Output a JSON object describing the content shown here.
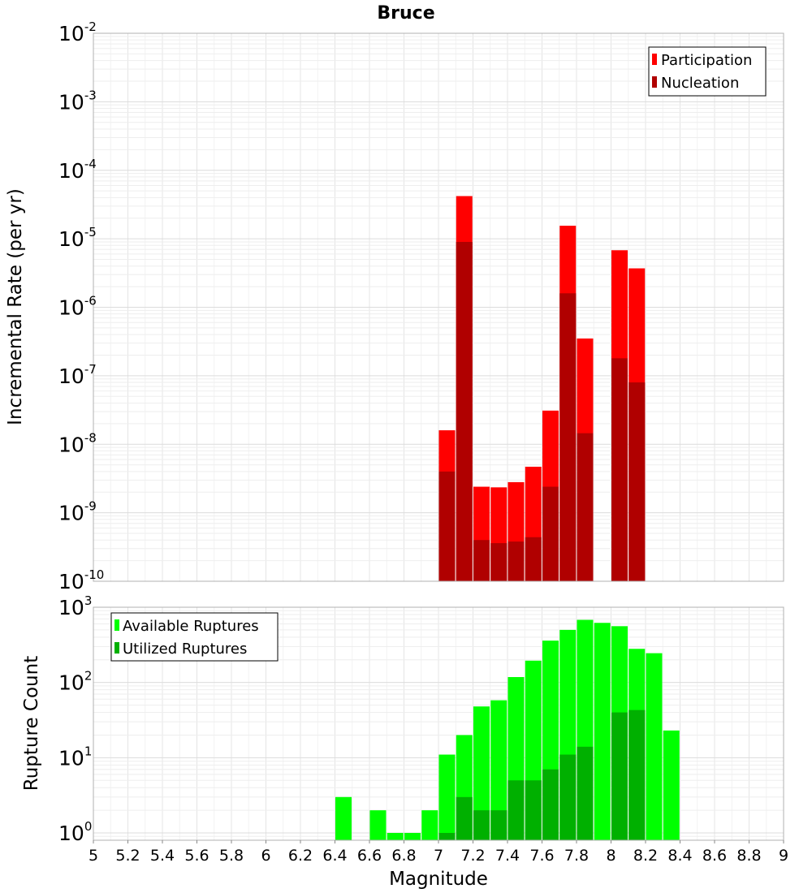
{
  "chart_data": [
    {
      "type": "bar",
      "title": "Bruce",
      "xlabel": "Magnitude",
      "ylabel": "Incremental Rate (per yr)",
      "yscale": "log",
      "ylim": [
        1e-10,
        0.01
      ],
      "xlim": [
        5,
        9
      ],
      "grid": true,
      "legend_position": "top-right",
      "y_ticks": [
        {
          "base": "10",
          "exp": "-10"
        },
        {
          "base": "10",
          "exp": "-9"
        },
        {
          "base": "10",
          "exp": "-8"
        },
        {
          "base": "10",
          "exp": "-7"
        },
        {
          "base": "10",
          "exp": "-6"
        },
        {
          "base": "10",
          "exp": "-5"
        },
        {
          "base": "10",
          "exp": "-4"
        },
        {
          "base": "10",
          "exp": "-3"
        },
        {
          "base": "10",
          "exp": "-2"
        }
      ],
      "x": [
        7.0,
        7.1,
        7.2,
        7.3,
        7.4,
        7.5,
        7.6,
        7.7,
        7.8,
        8.0,
        8.1
      ],
      "series": [
        {
          "name": "Participation",
          "color": "#ff0000",
          "values": [
            1.6e-08,
            4.2e-05,
            2.4e-09,
            2.35e-09,
            2.8e-09,
            4.7e-09,
            3.1e-08,
            1.55e-05,
            3.5e-07,
            6.8e-06,
            3.7e-06
          ]
        },
        {
          "name": "Nucleation",
          "color": "#b00000",
          "values": [
            4e-09,
            9e-06,
            4e-10,
            3.6e-10,
            3.8e-10,
            4.4e-10,
            2.4e-09,
            1.6e-06,
            1.45e-08,
            1.8e-07,
            8e-08
          ]
        }
      ]
    },
    {
      "type": "bar",
      "title": "",
      "xlabel": "Magnitude",
      "ylabel": "Rupture Count",
      "yscale": "log",
      "ylim": [
        0.8,
        1000
      ],
      "xlim": [
        5,
        9
      ],
      "grid": true,
      "legend_position": "top-left",
      "y_ticks": [
        {
          "base": "10",
          "exp": "0"
        },
        {
          "base": "10",
          "exp": "1"
        },
        {
          "base": "10",
          "exp": "2"
        },
        {
          "base": "10",
          "exp": "3"
        }
      ],
      "x_ticks": [
        "5",
        "5.2",
        "5.4",
        "5.6",
        "5.8",
        "6",
        "6.2",
        "6.4",
        "6.6",
        "6.8",
        "7",
        "7.2",
        "7.4",
        "7.6",
        "7.8",
        "8",
        "8.2",
        "8.4",
        "8.6",
        "8.8",
        "9"
      ],
      "x": [
        6.4,
        6.5,
        6.6,
        6.7,
        6.8,
        6.9,
        7.0,
        7.1,
        7.2,
        7.3,
        7.4,
        7.5,
        7.6,
        7.7,
        7.8,
        7.9,
        8.0,
        8.1,
        8.2,
        8.3
      ],
      "series": [
        {
          "name": "Available Ruptures",
          "color": "#00ff00",
          "values": [
            3,
            0,
            2,
            1,
            1,
            2,
            11,
            20,
            48,
            58,
            118,
            195,
            360,
            500,
            680,
            620,
            560,
            280,
            245,
            23
          ]
        },
        {
          "name": "Utilized Ruptures",
          "color": "#00b000",
          "values": [
            0,
            0,
            0,
            0,
            0,
            0,
            1,
            3,
            2,
            2,
            5,
            5,
            7,
            11,
            14,
            0,
            40,
            43,
            0,
            0
          ]
        }
      ]
    }
  ]
}
